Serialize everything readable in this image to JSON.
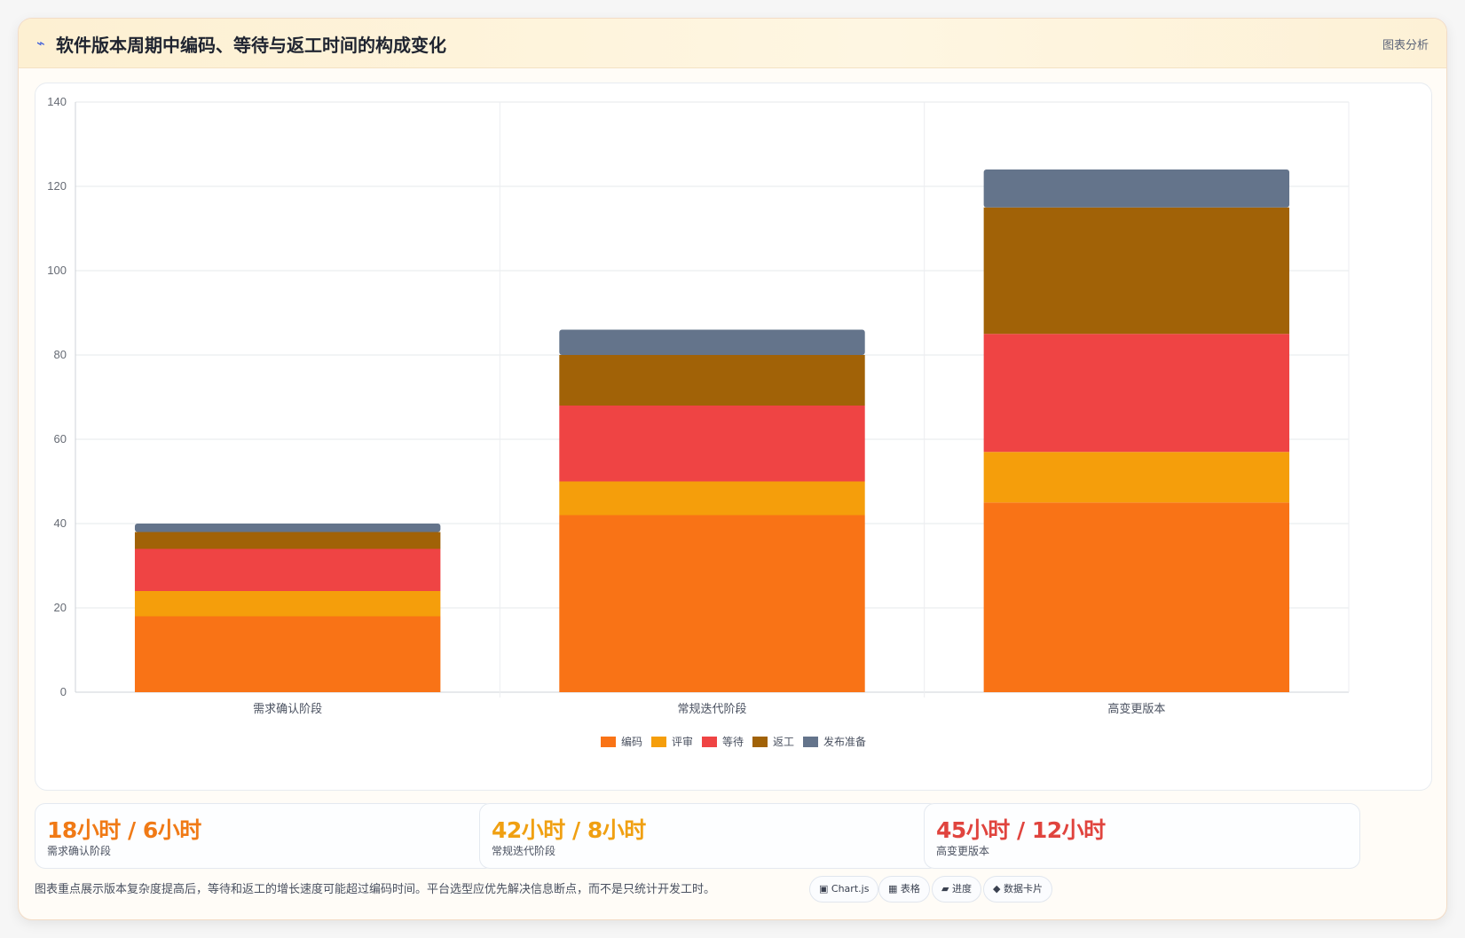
{
  "header": {
    "icon": "lightning-icon",
    "title": "软件版本周期中编码、等待与返工时间的构成变化",
    "right_label": "图表分析"
  },
  "chart_data": {
    "type": "bar",
    "stacked": true,
    "categories": [
      "需求确认阶段",
      "常规迭代阶段",
      "高变更版本"
    ],
    "series": [
      {
        "name": "编码",
        "color": "#f97316",
        "values": [
          18,
          42,
          45
        ]
      },
      {
        "name": "评审",
        "color": "#f59e0b",
        "values": [
          6,
          8,
          12
        ]
      },
      {
        "name": "等待",
        "color": "#ef4444",
        "values": [
          10,
          18,
          28
        ]
      },
      {
        "name": "返工",
        "color": "#a16207",
        "values": [
          4,
          12,
          30
        ]
      },
      {
        "name": "发布准备",
        "color": "#64748b",
        "values": [
          2,
          6,
          9
        ]
      }
    ],
    "ylim": [
      0,
      140
    ],
    "yticks": [
      0,
      20,
      40,
      60,
      80,
      100,
      120,
      140
    ],
    "grid": true,
    "legend_position": "bottom"
  },
  "stats": [
    {
      "value": "18小时 / 6小时",
      "label": "需求确认阶段",
      "color": "#f07a16"
    },
    {
      "value": "42小时 / 8小时",
      "label": "常规迭代阶段",
      "color": "#f0a012"
    },
    {
      "value": "45小时 / 12小时",
      "label": "高变更版本",
      "color": "#e0443e"
    }
  ],
  "footnote": "图表重点展示版本复杂度提高后，等待和返工的增长速度可能超过编码时间。平台选型应优先解决信息断点，而不是只统计开发工时。",
  "chips": [
    {
      "icon": "▣",
      "label": "Chart.js"
    },
    {
      "icon": "▦",
      "label": "表格"
    },
    {
      "icon": "▰",
      "label": "进度"
    },
    {
      "icon": "◆",
      "label": "数据卡片"
    }
  ]
}
